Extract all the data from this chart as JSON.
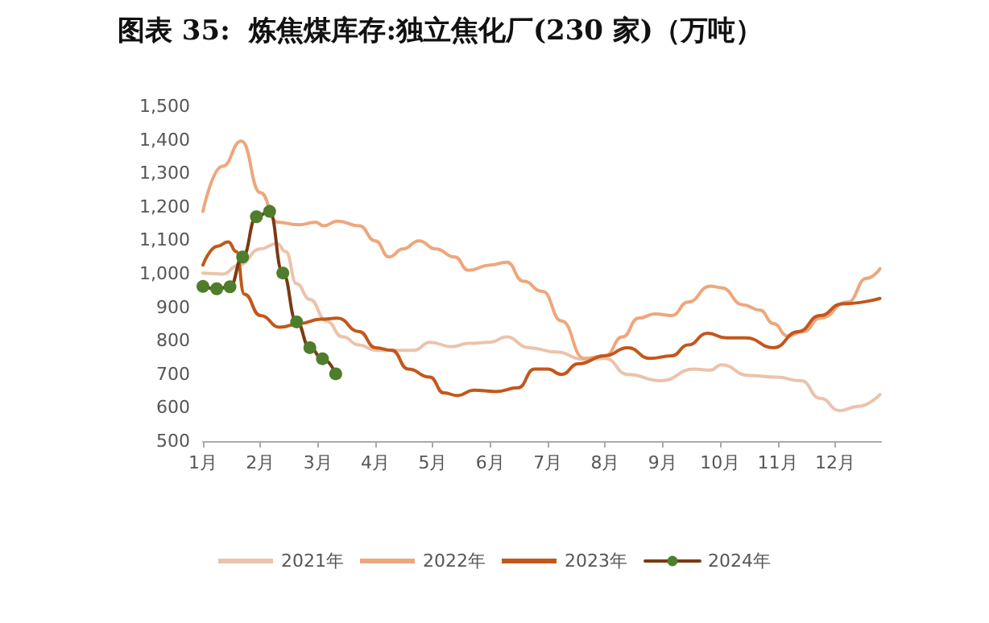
{
  "chart_data": {
    "type": "line",
    "title": "图表 35:  炼焦煤库存:独立焦化厂(230 家)（万吨）",
    "legend": "bottom",
    "grid": false,
    "line_style": "solid",
    "xlim": [
      1,
      12.8
    ],
    "xticks": [
      {
        "value": 1,
        "label": "1月"
      },
      {
        "value": 2,
        "label": "2月"
      },
      {
        "value": 3,
        "label": "3月"
      },
      {
        "value": 4,
        "label": "4月"
      },
      {
        "value": 5,
        "label": "5月"
      },
      {
        "value": 6,
        "label": "6月"
      },
      {
        "value": 7,
        "label": "7月"
      },
      {
        "value": 8,
        "label": "8月"
      },
      {
        "value": 9,
        "label": "9月"
      },
      {
        "value": 10,
        "label": "10月"
      },
      {
        "value": 11,
        "label": "11月"
      },
      {
        "value": 12,
        "label": "12月"
      }
    ],
    "ylim": [
      500,
      1500
    ],
    "yticks": [
      500,
      600,
      700,
      800,
      900,
      {
        "value": 1000,
        "label": "1,000"
      },
      {
        "value": 1100,
        "label": "1,100"
      },
      {
        "value": 1200,
        "label": "1,200"
      },
      {
        "value": 1300,
        "label": "1,300"
      },
      {
        "value": 1400,
        "label": "1,400"
      },
      {
        "value": 1500,
        "label": "1,500"
      }
    ],
    "series": [
      {
        "name": "2021年",
        "color": "#ebc3ab",
        "marker": "none",
        "x": [
          1,
          1.34,
          1.63,
          2.0,
          2.29,
          2.44,
          2.63,
          2.86,
          3.15,
          3.43,
          3.72,
          4.0,
          4.38,
          4.67,
          4.95,
          5.33,
          5.62,
          6.0,
          6.28,
          6.67,
          7.15,
          7.63,
          8.0,
          8.39,
          8.97,
          9.54,
          9.83,
          10.02,
          10.5,
          10.98,
          11.41,
          11.74,
          12.08,
          12.41,
          12.78
        ],
        "values": [
          1002,
          999,
          1026,
          1074,
          1090,
          1066,
          970,
          923,
          859,
          811,
          787,
          771,
          771,
          771,
          795,
          782,
          792,
          795,
          811,
          779,
          766,
          744,
          747,
          699,
          680,
          715,
          712,
          728,
          696,
          691,
          680,
          628,
          591,
          604,
          639
        ]
      },
      {
        "name": "2022年",
        "color": "#eda77d",
        "marker": "none",
        "x": [
          1,
          1.34,
          1.67,
          2.0,
          2.29,
          2.67,
          2.96,
          3.1,
          3.34,
          3.72,
          4.0,
          4.24,
          4.48,
          4.76,
          5.05,
          5.38,
          5.62,
          6.0,
          6.29,
          6.57,
          6.91,
          7.24,
          7.63,
          8.0,
          8.3,
          8.58,
          8.87,
          9.16,
          9.44,
          9.83,
          10.02,
          10.4,
          10.69,
          10.93,
          11.17,
          11.45,
          11.74,
          12.22,
          12.55,
          12.78
        ],
        "values": [
          1186,
          1321,
          1396,
          1242,
          1154,
          1146,
          1154,
          1143,
          1157,
          1143,
          1098,
          1050,
          1074,
          1098,
          1074,
          1050,
          1010,
          1026,
          1034,
          978,
          947,
          859,
          747,
          755,
          811,
          867,
          880,
          875,
          915,
          963,
          958,
          907,
          891,
          851,
          814,
          827,
          867,
          915,
          986,
          1015
        ]
      },
      {
        "name": "2023年",
        "color": "#c2571c",
        "marker": "none",
        "x": [
          1,
          1.25,
          1.44,
          1.58,
          1.72,
          2.0,
          2.34,
          2.67,
          3.05,
          3.34,
          3.72,
          4.0,
          4.29,
          4.57,
          4.95,
          5.19,
          5.43,
          5.71,
          6.1,
          6.48,
          6.77,
          7.0,
          7.24,
          7.53,
          8.0,
          8.39,
          8.78,
          9.16,
          9.44,
          9.78,
          10.11,
          10.45,
          10.93,
          11.36,
          11.74,
          12.12,
          12.78
        ],
        "values": [
          1026,
          1082,
          1095,
          1066,
          939,
          875,
          840,
          851,
          864,
          867,
          827,
          779,
          771,
          715,
          691,
          644,
          636,
          652,
          648,
          659,
          715,
          715,
          699,
          731,
          755,
          779,
          747,
          755,
          787,
          822,
          808,
          808,
          779,
          827,
          875,
          910,
          926
        ]
      },
      {
        "name": "2024年",
        "color": "#7a3a12",
        "marker": "circle",
        "colors": [
          "#4e7d2c",
          "#4e7d2c",
          "#4e7d2c",
          "#4e7d2c",
          "#4e7d2c",
          "#4e7d2c",
          "#4e7d2c",
          "#4e7d2c",
          "#4e7d2c",
          "#4e7d2c",
          "#4e7d2c"
        ],
        "x": [
          1,
          1.24,
          1.47,
          1.69,
          1.93,
          2.16,
          2.39,
          2.63,
          2.86,
          3.08,
          3.31
        ],
        "values": [
          962,
          955,
          961,
          1050,
          1170,
          1186,
          1002,
          856,
          779,
          746,
          701
        ]
      }
    ]
  }
}
